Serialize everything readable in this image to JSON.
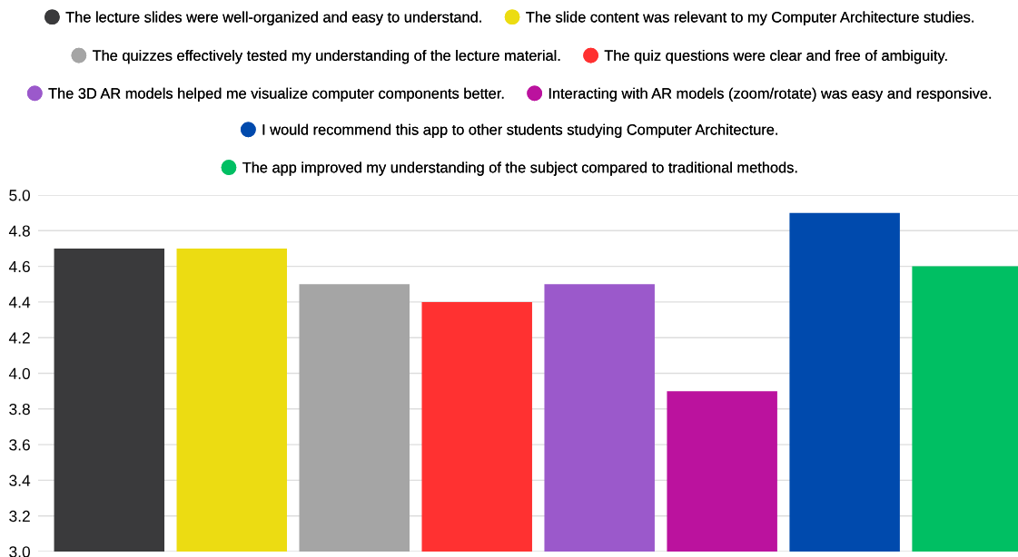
{
  "chart_data": {
    "type": "bar",
    "categories": [
      null,
      null,
      null,
      null,
      null,
      null,
      null,
      null
    ],
    "series": [
      {
        "name": "The lecture slides were well-organized and easy to understand.",
        "color": "#3a3a3c",
        "values": [
          4.7,
          null,
          null,
          null,
          null,
          null,
          null,
          null
        ]
      },
      {
        "name": "The slide content was relevant to my Computer Architecture studies.",
        "color": "#ecdc12",
        "values": [
          null,
          4.7,
          null,
          null,
          null,
          null,
          null,
          null
        ]
      },
      {
        "name": "The quizzes effectively tested my understanding of the lecture material.",
        "color": "#a5a5a5",
        "values": [
          null,
          null,
          4.5,
          null,
          null,
          null,
          null,
          null
        ]
      },
      {
        "name": "The quiz questions were clear and free of ambiguity.",
        "color": "#ff3131",
        "values": [
          null,
          null,
          null,
          4.4,
          null,
          null,
          null,
          null
        ]
      },
      {
        "name": "The 3D AR models helped me visualize computer components better.",
        "color": "#9b59cb",
        "values": [
          null,
          null,
          null,
          null,
          4.5,
          null,
          null,
          null
        ]
      },
      {
        "name": "Interacting with AR models (zoom/rotate) was easy and responsive.",
        "color": "#bb129e",
        "values": [
          null,
          null,
          null,
          null,
          null,
          3.9,
          null,
          null
        ]
      },
      {
        "name": "I would recommend this app to other students studying Computer Architecture.",
        "color": "#004aad",
        "values": [
          null,
          null,
          null,
          null,
          null,
          null,
          4.9,
          null
        ]
      },
      {
        "name": "The app improved my understanding of the subject compared to traditional methods.",
        "color": "#00bf63",
        "values": [
          null,
          null,
          null,
          null,
          null,
          null,
          null,
          4.6
        ]
      }
    ],
    "ylim": [
      3.0,
      5.0
    ],
    "yticks": [
      {
        "value": 3.0,
        "label": "3.0"
      },
      {
        "value": 3.2,
        "label": "3.2"
      },
      {
        "value": 3.4,
        "label": "3.4"
      },
      {
        "value": 3.6,
        "label": "3.6"
      },
      {
        "value": 3.8,
        "label": "3.8"
      },
      {
        "value": 4.0,
        "label": "4.0"
      },
      {
        "value": 4.2,
        "label": "4.2"
      },
      {
        "value": 4.4,
        "label": "4.4"
      },
      {
        "value": 4.6,
        "label": "4.6"
      },
      {
        "value": 4.8,
        "label": "4.8"
      },
      {
        "value": 5.0,
        "label": "5.0"
      }
    ],
    "grid": "y",
    "legend": "top",
    "tick_labels": "y"
  }
}
